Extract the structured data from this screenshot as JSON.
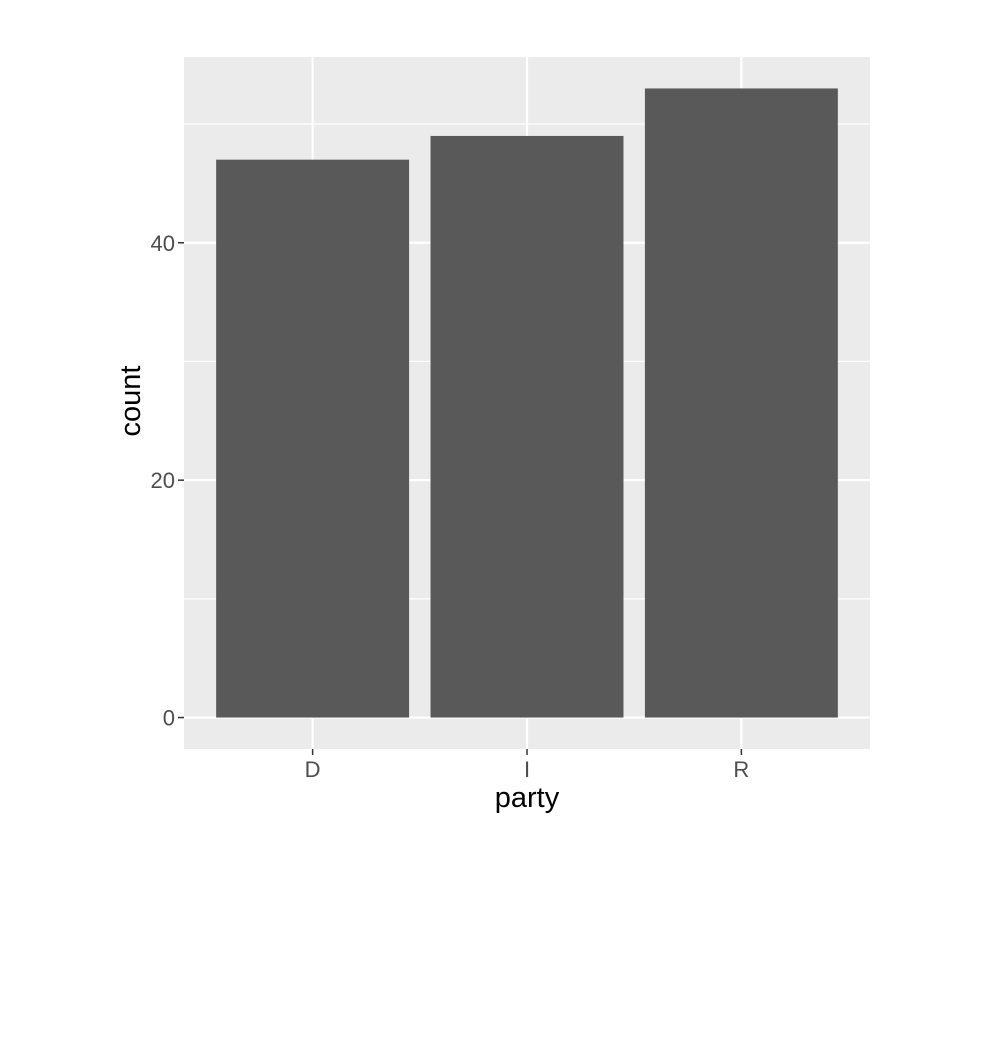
{
  "chart_data": {
    "type": "bar",
    "categories": [
      "D",
      "I",
      "R"
    ],
    "values": [
      47,
      49,
      53
    ],
    "title": "",
    "xlabel": "party",
    "ylabel": "count",
    "ylim": [
      -2.65,
      55.65
    ],
    "yticks": [
      0,
      20,
      40
    ],
    "yticks_minor": [
      10,
      30,
      50
    ],
    "yticklabels": [
      "0",
      "20",
      "40"
    ],
    "grid": true,
    "legend": "none",
    "colors": {
      "panel": "#EBEBEB",
      "gridline": "#FFFFFF",
      "bar": "#595959",
      "tick_label": "#4D4D4D",
      "tick_mark": "#333333",
      "axis_title": "#000000"
    }
  }
}
